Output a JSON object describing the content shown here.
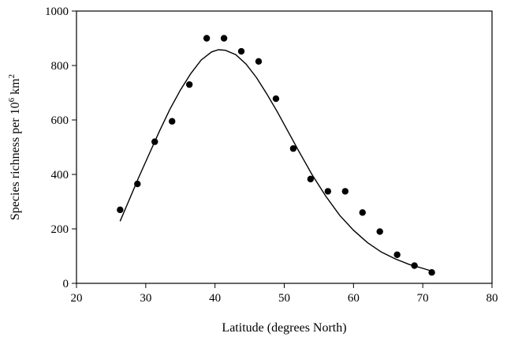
{
  "chart_data": {
    "type": "scatter",
    "xlabel": "Latitude (degrees North)",
    "ylabel": {
      "prefix": "Species richness per 10",
      "sup1": "6",
      "mid": " km",
      "sup2": "2"
    },
    "xlim": [
      20,
      80
    ],
    "ylim": [
      0,
      1000
    ],
    "xticks": [
      20,
      30,
      40,
      50,
      60,
      70,
      80
    ],
    "yticks": [
      0,
      200,
      400,
      600,
      800,
      1000
    ],
    "grid": false,
    "legend": "none",
    "series": [
      {
        "kind": "points",
        "marker": "filled-circle",
        "color": "#000000",
        "x": [
          26.3,
          28.8,
          31.3,
          33.8,
          36.3,
          38.8,
          41.3,
          43.8,
          46.3,
          48.8,
          51.3,
          53.8,
          56.3,
          58.8,
          61.3,
          63.8,
          66.3,
          68.8,
          71.3
        ],
        "y": [
          270,
          365,
          520,
          595,
          730,
          900,
          900,
          852,
          815,
          678,
          495,
          383,
          338,
          338,
          260,
          190,
          105,
          65,
          40
        ]
      },
      {
        "kind": "fitted-curve",
        "color": "#000000",
        "x": [
          26.3,
          27.5,
          29,
          30.5,
          32,
          33.5,
          35,
          36.5,
          38,
          39.5,
          40.5,
          41.5,
          43,
          44.5,
          46,
          47.5,
          49,
          50.5,
          52,
          54,
          56,
          58,
          60,
          62,
          64,
          66,
          68,
          70,
          71.3
        ],
        "y": [
          228,
          300,
          390,
          475,
          560,
          640,
          710,
          770,
          820,
          850,
          858,
          856,
          840,
          805,
          755,
          695,
          630,
          560,
          490,
          400,
          320,
          250,
          195,
          150,
          115,
          90,
          70,
          55,
          45
        ]
      }
    ]
  }
}
